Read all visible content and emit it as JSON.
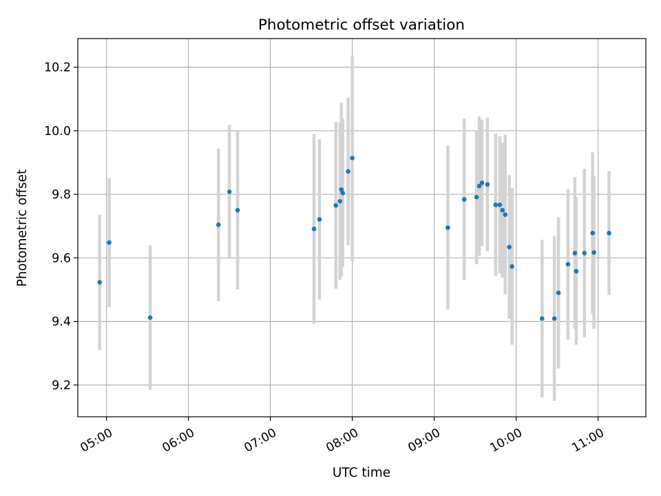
{
  "chart_data": {
    "type": "scatter",
    "title": "Photometric offset variation",
    "xlabel": "UTC time",
    "ylabel": "Photometric offset",
    "x_axis_kind": "time-of-day",
    "x_tick_values": [
      "05:00",
      "06:00",
      "07:00",
      "08:00",
      "09:00",
      "10:00",
      "11:00"
    ],
    "y_tick_values": [
      9.2,
      9.4,
      9.6,
      9.8,
      10.0,
      10.2
    ],
    "x_range": [
      "04:39",
      "11:35"
    ],
    "ylim": [
      9.1,
      10.29
    ],
    "grid": true,
    "colors": {
      "point": "#1f77b4",
      "error_bar": "#d3d3d3",
      "grid": "#b0b0b0"
    },
    "series": [
      {
        "points": [
          {
            "x": "04:55",
            "y": 9.523,
            "err": 0.213
          },
          {
            "x": "05:02",
            "y": 9.648,
            "err": 0.203
          },
          {
            "x": "05:32",
            "y": 9.412,
            "err": 0.227
          },
          {
            "x": "06:22",
            "y": 9.704,
            "err": 0.24
          },
          {
            "x": "06:30",
            "y": 9.808,
            "err": 0.211
          },
          {
            "x": "06:36",
            "y": 9.75,
            "err": 0.249
          },
          {
            "x": "07:32",
            "y": 9.691,
            "err": 0.298
          },
          {
            "x": "07:36",
            "y": 9.721,
            "err": 0.252
          },
          {
            "x": "07:48",
            "y": 9.765,
            "err": 0.263
          },
          {
            "x": "07:51",
            "y": 9.778,
            "err": 0.247
          },
          {
            "x": "07:52",
            "y": 9.815,
            "err": 0.273
          },
          {
            "x": "07:53",
            "y": 9.804,
            "err": 0.233
          },
          {
            "x": "07:57",
            "y": 9.872,
            "err": 0.232
          },
          {
            "x": "08:00",
            "y": 9.914,
            "err": 0.323
          },
          {
            "x": "09:10",
            "y": 9.695,
            "err": 0.258
          },
          {
            "x": "09:22",
            "y": 9.784,
            "err": 0.254
          },
          {
            "x": "09:31",
            "y": 9.791,
            "err": 0.211
          },
          {
            "x": "09:33",
            "y": 9.826,
            "err": 0.219
          },
          {
            "x": "09:35",
            "y": 9.836,
            "err": 0.199
          },
          {
            "x": "09:39",
            "y": 9.831,
            "err": 0.21
          },
          {
            "x": "09:45",
            "y": 9.767,
            "err": 0.224
          },
          {
            "x": "09:48",
            "y": 9.767,
            "err": 0.216
          },
          {
            "x": "09:50",
            "y": 9.75,
            "err": 0.212
          },
          {
            "x": "09:52",
            "y": 9.736,
            "err": 0.251
          },
          {
            "x": "09:55",
            "y": 9.634,
            "err": 0.226
          },
          {
            "x": "09:57",
            "y": 9.573,
            "err": 0.246
          },
          {
            "x": "10:19",
            "y": 9.409,
            "err": 0.248
          },
          {
            "x": "10:28",
            "y": 9.409,
            "err": 0.259
          },
          {
            "x": "10:31",
            "y": 9.49,
            "err": 0.238
          },
          {
            "x": "10:38",
            "y": 9.58,
            "err": 0.237
          },
          {
            "x": "10:43",
            "y": 9.615,
            "err": 0.239
          },
          {
            "x": "10:44",
            "y": 9.558,
            "err": 0.232
          },
          {
            "x": "10:50",
            "y": 9.615,
            "err": 0.265
          },
          {
            "x": "10:56",
            "y": 9.678,
            "err": 0.254
          },
          {
            "x": "10:57",
            "y": 9.617,
            "err": 0.24
          },
          {
            "x": "11:08",
            "y": 9.678,
            "err": 0.195
          }
        ]
      }
    ]
  }
}
